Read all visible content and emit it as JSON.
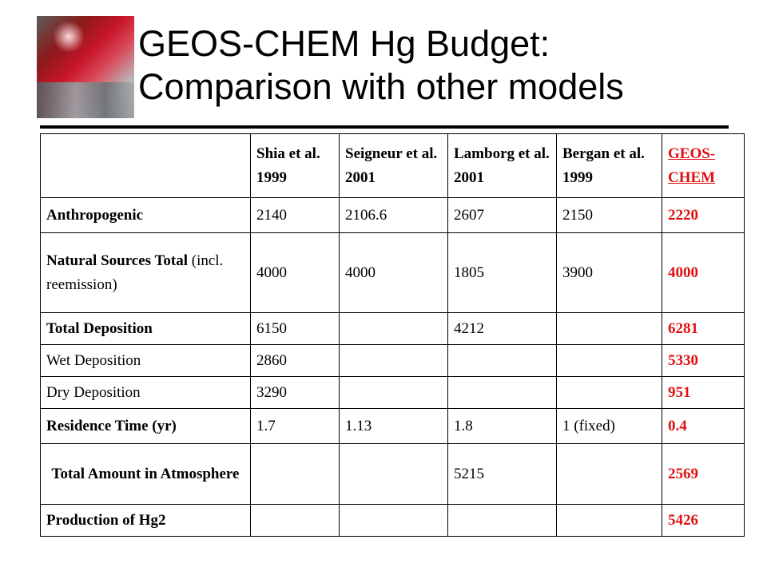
{
  "slide": {
    "title_line1": "GEOS-CHEM Hg Budget:",
    "title_line2": "Comparison with other models"
  },
  "table": {
    "columns": [
      "",
      "Shia et al. 1999",
      "Seigneur et al. 2001",
      "Lamborg et al. 2001",
      "Bergan et al. 1999",
      "GEOS-CHEM"
    ],
    "rows": [
      {
        "label": "Anthropogenic",
        "label_note": "",
        "values": [
          "2140",
          "2106.6",
          "2607",
          "2150",
          "2220"
        ]
      },
      {
        "label": "Natural Sources Total",
        "label_note": " (incl. reemission)",
        "values": [
          "4000",
          "4000",
          "1805",
          "3900",
          "4000"
        ]
      },
      {
        "label": "Total Deposition",
        "label_note": "",
        "values": [
          "6150",
          "",
          "4212",
          "",
          "6281"
        ]
      },
      {
        "label": "Wet Deposition",
        "label_note": "",
        "values": [
          "2860",
          "",
          "",
          "",
          "5330"
        ]
      },
      {
        "label": "Dry Deposition",
        "label_note": "",
        "values": [
          "3290",
          "",
          "",
          "",
          "951"
        ]
      },
      {
        "label": "Residence Time (yr)",
        "label_note": "",
        "values": [
          "1.7",
          "1.13",
          "1.8",
          "1  (fixed)",
          "0.4"
        ]
      },
      {
        "label": "Total Amount in Atmosphere",
        "label_note": "",
        "values": [
          "",
          "",
          "5215",
          "",
          "2569"
        ]
      },
      {
        "label": "Production of Hg2",
        "label_note": "",
        "values": [
          "",
          "",
          "",
          "",
          "5426"
        ]
      }
    ]
  },
  "colors": {
    "highlight": "#e01010"
  },
  "icons": {
    "logo": "cinnabar-crystal-photo"
  }
}
